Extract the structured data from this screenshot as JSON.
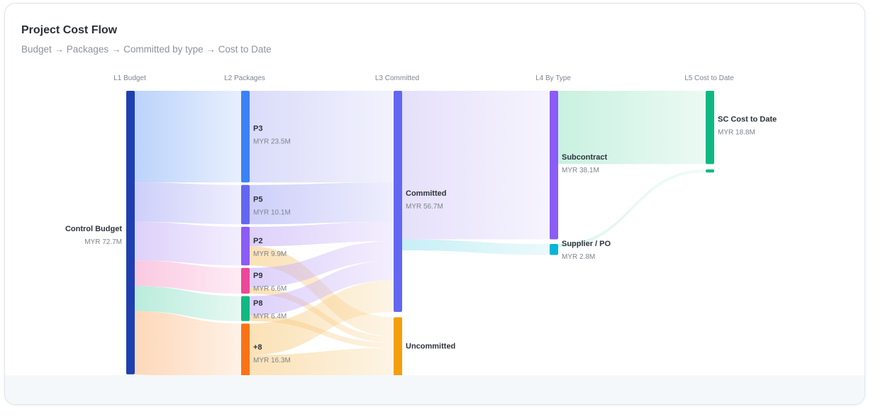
{
  "header": {
    "title": "Project Cost Flow",
    "subtitle": "Budget → Packages → Committed by type → Cost to Date"
  },
  "chart_data": {
    "type": "sankey",
    "title": "Project Cost Flow",
    "subtitle": "Budget → Packages → Committed by type → Cost to Date",
    "unit": "MYR",
    "columns": [
      "L1 Budget",
      "L2 Packages",
      "L3 Committed",
      "L4 By Type",
      "L5 Cost to Date"
    ],
    "nodes": [
      {
        "id": "budget",
        "label": "Control Budget",
        "value_label": "MYR 72.7M",
        "value": 72.7,
        "column": 0,
        "color": "#1e40af"
      },
      {
        "id": "p3",
        "label": "P3",
        "value_label": "MYR 23.5M",
        "value": 23.5,
        "column": 1,
        "color": "#3b82f6"
      },
      {
        "id": "p5",
        "label": "P5",
        "value_label": "MYR 10.1M",
        "value": 10.1,
        "column": 1,
        "color": "#6366f1"
      },
      {
        "id": "p2",
        "label": "P2",
        "value_label": "MYR 9.9M",
        "value": 9.9,
        "column": 1,
        "color": "#8b5cf6"
      },
      {
        "id": "p9",
        "label": "P9",
        "value_label": "MYR 6.6M",
        "value": 6.6,
        "column": 1,
        "color": "#ec4899"
      },
      {
        "id": "p8",
        "label": "P8",
        "value_label": "MYR 6.4M",
        "value": 6.4,
        "column": 1,
        "color": "#10b981"
      },
      {
        "id": "more",
        "label": "+8",
        "value_label": "MYR 16.3M",
        "value": 16.3,
        "column": 1,
        "color": "#f97316"
      },
      {
        "id": "committed",
        "label": "Committed",
        "value_label": "MYR 56.7M",
        "value": 56.7,
        "column": 2,
        "color": "#6366f1"
      },
      {
        "id": "uncommitted",
        "label": "Uncommitted",
        "value_label": "",
        "value": 16.0,
        "column": 2,
        "color": "#f59e0b"
      },
      {
        "id": "subcontract",
        "label": "Subcontract",
        "value_label": "MYR 38.1M",
        "value": 38.1,
        "column": 3,
        "color": "#8b5cf6"
      },
      {
        "id": "supplier",
        "label": "Supplier / PO",
        "value_label": "MYR 2.8M",
        "value": 2.8,
        "column": 3,
        "color": "#06b6d4"
      },
      {
        "id": "sc_cost",
        "label": "SC Cost to Date",
        "value_label": "MYR 18.8M",
        "value": 18.8,
        "column": 4,
        "color": "#10b981"
      },
      {
        "id": "sup_cost",
        "label": "",
        "value_label": "",
        "value": 0.8,
        "column": 4,
        "color": "#10b981"
      }
    ],
    "links": [
      {
        "source": "budget",
        "target": "p3",
        "value": 23.5,
        "color": "#93b8f8"
      },
      {
        "source": "budget",
        "target": "p5",
        "value": 10.1,
        "color": "#b0b2f6"
      },
      {
        "source": "budget",
        "target": "p2",
        "value": 9.9,
        "color": "#c9b4f8"
      },
      {
        "source": "budget",
        "target": "p9",
        "value": 6.6,
        "color": "#f7a8cf"
      },
      {
        "source": "budget",
        "target": "p8",
        "value": 6.4,
        "color": "#8fe0c6"
      },
      {
        "source": "budget",
        "target": "more",
        "value": 16.3,
        "color": "#fcc08f"
      },
      {
        "source": "p3",
        "target": "committed",
        "value": 23.5,
        "color": "#c4c6f6"
      },
      {
        "source": "p5",
        "target": "committed",
        "value": 10.1,
        "color": "#b0b2f6"
      },
      {
        "source": "p2",
        "target": "committed",
        "value": 5.0,
        "color": "#c9b4f8"
      },
      {
        "source": "p2",
        "target": "uncommitted",
        "value": 4.9,
        "color": "#f8cf8a"
      },
      {
        "source": "p9",
        "target": "committed",
        "value": 5.0,
        "color": "#c9b4f8"
      },
      {
        "source": "p9",
        "target": "uncommitted",
        "value": 1.6,
        "color": "#f8cf8a"
      },
      {
        "source": "p8",
        "target": "committed",
        "value": 5.0,
        "color": "#c9b4f8"
      },
      {
        "source": "p8",
        "target": "uncommitted",
        "value": 1.4,
        "color": "#f8cf8a"
      },
      {
        "source": "more",
        "target": "committed",
        "value": 8.1,
        "color": "#f8cf8a"
      },
      {
        "source": "more",
        "target": "uncommitted",
        "value": 8.1,
        "color": "#f8cf8a"
      },
      {
        "source": "committed",
        "target": "subcontract",
        "value": 38.1,
        "color": "#d6cdf8"
      },
      {
        "source": "committed",
        "target": "supplier",
        "value": 2.8,
        "color": "#a5e6ef"
      },
      {
        "source": "subcontract",
        "target": "sc_cost",
        "value": 18.8,
        "color": "#a7e8cd"
      },
      {
        "source": "supplier",
        "target": "sup_cost",
        "value": 0.8,
        "color": "#c2f0dd"
      }
    ]
  }
}
